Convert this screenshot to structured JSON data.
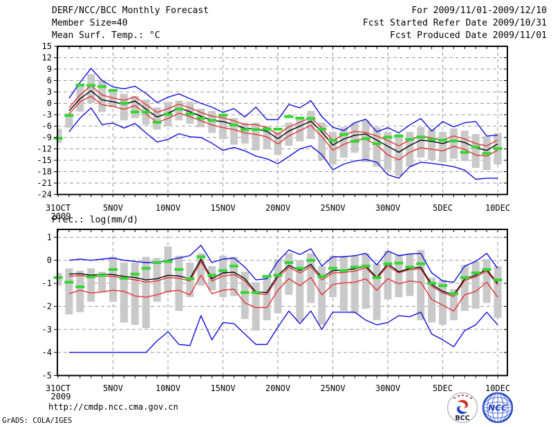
{
  "header": {
    "title": "DERF/NCC/BCC Monthly Forecast",
    "member_size": "Member Size=40",
    "for_range": "For 2009/11/01-2009/12/10",
    "refer_date": "Fcst Started Refer Date 2009/10/31",
    "produced_date": "Fcst Produced Date 2009/11/01"
  },
  "footer": {
    "url": "http://cmdp.ncc.cma.gov.cn",
    "credit": "GrADS: COLA/IGES",
    "logos": {
      "bcc_label": "BCC",
      "ncc_label": "NCC"
    }
  },
  "colors": {
    "ensemble_extreme": "#0d0de0",
    "ensemble_std": "#e63232",
    "ensemble_mean": "#000000",
    "observation": "#33d633",
    "spread_bar": "#c9c9c9",
    "grid": "#999999"
  },
  "chart_data": [
    {
      "type": "line",
      "title": "Mean Surf. Temp.: °C",
      "ylim": [
        -24,
        15
      ],
      "yticks": [
        15,
        12,
        9,
        6,
        3,
        0,
        -3,
        -6,
        -9,
        -12,
        -15,
        -18,
        -21,
        -24
      ],
      "x_tick_days": [
        0,
        5,
        10,
        15,
        20,
        25,
        30,
        35,
        40
      ],
      "x_tick_labels": [
        "31OCT",
        "5NOV",
        "10NOV",
        "15NOV",
        "20NOV",
        "25NOV",
        "30NOV",
        "5DEC",
        "10DEC"
      ],
      "x_sub_label": "2009",
      "grid": true,
      "series": [
        {
          "name": "ensemble-max",
          "color": "#0d0de0",
          "values": [
            null,
            1.3,
            5.5,
            9.2,
            6.0,
            4.3,
            3.8,
            4.5,
            2.6,
            0.2,
            1.6,
            2.5,
            1.2,
            0.0,
            -1.0,
            -2.4,
            -1.4,
            -3.6,
            -1.0,
            -4.3,
            -4.3,
            -0.3,
            -1.2,
            0.7,
            -3.5,
            -6.3,
            -7.2,
            -5.1,
            -4.2,
            -7.5,
            -6.4,
            -7.8,
            -5.7,
            -4.0,
            -7.3,
            -4.8,
            -6.2,
            -5.1,
            -4.8,
            -8.6,
            -8.4
          ]
        },
        {
          "name": "mean-plus-std",
          "color": "#e63232",
          "values": [
            null,
            -1.2,
            2.2,
            4.7,
            2.2,
            1.4,
            0.8,
            1.7,
            -0.3,
            -2.4,
            -1.4,
            -0.2,
            -1.2,
            -2.4,
            -3.4,
            -3.8,
            -4.6,
            -5.6,
            -5.6,
            -6.4,
            -8.2,
            -6.2,
            -5.0,
            -3.8,
            -6.5,
            -9.8,
            -8.2,
            -7.4,
            -7.7,
            -8.6,
            -9.8,
            -11.2,
            -9.7,
            -8.6,
            -9.1,
            -9.7,
            -8.6,
            -9.4,
            -10.6,
            -11.2,
            -9.7
          ]
        },
        {
          "name": "ensemble-mean",
          "color": "#000000",
          "values": [
            null,
            -2.0,
            1.2,
            3.3,
            0.9,
            0.4,
            -0.3,
            0.6,
            -1.5,
            -3.6,
            -2.6,
            -1.3,
            -2.2,
            -3.4,
            -4.5,
            -4.8,
            -5.6,
            -6.6,
            -6.7,
            -7.4,
            -9.3,
            -7.3,
            -6.0,
            -4.7,
            -7.5,
            -11.0,
            -9.4,
            -8.4,
            -8.1,
            -9.7,
            -11.3,
            -12.9,
            -11.1,
            -9.7,
            -10.0,
            -10.6,
            -9.7,
            -10.3,
            -11.7,
            -12.4,
            -10.7
          ]
        },
        {
          "name": "mean-minus-std",
          "color": "#e63232",
          "values": [
            null,
            -2.8,
            0.4,
            1.9,
            -0.4,
            -0.8,
            -1.6,
            -0.6,
            -2.8,
            -5.0,
            -4.0,
            -2.6,
            -3.5,
            -4.6,
            -5.7,
            -6.4,
            -6.9,
            -7.8,
            -8.2,
            -8.8,
            -10.7,
            -8.6,
            -7.2,
            -5.8,
            -8.8,
            -12.3,
            -10.8,
            -9.7,
            -9.4,
            -11.0,
            -13.6,
            -14.9,
            -12.9,
            -11.7,
            -12.1,
            -12.5,
            -11.3,
            -12.1,
            -13.6,
            -13.9,
            -12.3
          ]
        },
        {
          "name": "ensemble-min",
          "color": "#0d0de0",
          "values": [
            null,
            -7.5,
            -3.9,
            -1.2,
            -5.6,
            -5.2,
            -6.5,
            -5.3,
            -7.8,
            -10.2,
            -9.5,
            -8.0,
            -8.8,
            -9.0,
            -10.5,
            -12.4,
            -11.6,
            -12.5,
            -13.9,
            -14.6,
            -15.9,
            -14.0,
            -12.0,
            -11.2,
            -13.5,
            -17.5,
            -16.0,
            -15.2,
            -14.8,
            -15.5,
            -18.8,
            -19.7,
            -16.7,
            -15.5,
            -15.8,
            -16.2,
            -16.7,
            -17.6,
            -20.0,
            -19.7,
            -19.7
          ]
        }
      ],
      "obs": {
        "name": "observation",
        "color": "#33d633",
        "values": [
          -9.2,
          -3.2,
          4.8,
          4.7,
          4.4,
          3.4,
          0.0,
          -2.3,
          -2.3,
          -5.0,
          -2.9,
          -1.5,
          -2.8,
          -3.9,
          -4.5,
          -3.1,
          -5.7,
          -6.9,
          -6.9,
          -6.8,
          -6.8,
          -3.5,
          -3.9,
          -4.0,
          -6.8,
          -9.8,
          -8.2,
          -10.0,
          -9.3,
          -10.6,
          -8.9,
          -8.6,
          -9.5,
          -8.9,
          -9.5,
          -9.7,
          -9.9,
          -12.9,
          -11.5,
          -13.2,
          -11.9
        ]
      },
      "spread_bars": {
        "color": "#c9c9c9",
        "ranges": [
          [
            -6.7,
            -10.4
          ],
          [
            -2.6,
            -6.4
          ],
          [
            5.0,
            -2.2
          ],
          [
            7.7,
            0.1
          ],
          [
            6.2,
            -2.3
          ],
          [
            3.8,
            -1.0
          ],
          [
            2.5,
            -4.5
          ],
          [
            1.9,
            -3.9
          ],
          [
            1.0,
            -5.7
          ],
          [
            -1.1,
            -6.9
          ],
          [
            0.4,
            -6.0
          ],
          [
            0.7,
            -4.5
          ],
          [
            0.4,
            -5.4
          ],
          [
            -1.4,
            -6.3
          ],
          [
            -2.0,
            -7.8
          ],
          [
            -3.3,
            -9.4
          ],
          [
            -3.9,
            -10.9
          ],
          [
            -5.1,
            -10.6
          ],
          [
            -5.1,
            -12.4
          ],
          [
            -6.0,
            -12.1
          ],
          [
            -7.5,
            -13.6
          ],
          [
            -5.1,
            -11.2
          ],
          [
            -3.9,
            -10.0
          ],
          [
            -2.0,
            -9.4
          ],
          [
            -5.1,
            -14.9
          ],
          [
            -7.5,
            -16.1
          ],
          [
            -6.3,
            -14.3
          ],
          [
            -5.1,
            -13.0
          ],
          [
            -4.5,
            -15.5
          ],
          [
            -6.3,
            -16.7
          ],
          [
            -7.5,
            -17.6
          ],
          [
            -8.1,
            -19.1
          ],
          [
            -7.5,
            -16.7
          ],
          [
            -6.3,
            -14.3
          ],
          [
            -6.9,
            -14.9
          ],
          [
            -7.5,
            -15.5
          ],
          [
            -6.6,
            -14.6
          ],
          [
            -7.2,
            -15.2
          ],
          [
            -8.1,
            -17.0
          ],
          [
            -8.7,
            -17.6
          ],
          [
            -7.8,
            -16.1
          ]
        ]
      }
    },
    {
      "type": "line",
      "title": "Prec.: log(mm/d)",
      "ylim": [
        -5,
        1.34
      ],
      "yticks": [
        1,
        0,
        -1,
        -2,
        -3,
        -4,
        -5
      ],
      "x_tick_days": [
        0,
        5,
        10,
        15,
        20,
        25,
        30,
        35,
        40
      ],
      "x_tick_labels": [
        "31OCT",
        "5NOV",
        "10NOV",
        "15NOV",
        "20NOV",
        "25NOV",
        "30NOV",
        "5DEC",
        "10DEC"
      ],
      "x_sub_label": "2009",
      "grid": true,
      "series": [
        {
          "name": "ensemble-max",
          "color": "#0d0de0",
          "values": [
            null,
            0.0,
            0.05,
            0.0,
            0.05,
            0.1,
            0.0,
            -0.05,
            -0.1,
            -0.1,
            0.0,
            0.1,
            0.2,
            0.65,
            -0.1,
            0.05,
            0.1,
            -0.3,
            -0.85,
            -0.8,
            -0.05,
            0.45,
            0.25,
            0.5,
            -0.25,
            0.15,
            0.15,
            0.2,
            0.3,
            -0.2,
            0.4,
            0.2,
            0.27,
            0.3,
            -0.55,
            -0.9,
            -0.95,
            -0.25,
            -0.05,
            0.3,
            -0.35
          ]
        },
        {
          "name": "mean-plus-std",
          "color": "#e63232",
          "values": [
            null,
            -0.7,
            -0.66,
            -0.73,
            -0.68,
            -0.7,
            -0.78,
            -0.85,
            -0.95,
            -0.9,
            -0.75,
            -0.78,
            -0.9,
            -0.05,
            -0.9,
            -0.68,
            -0.62,
            -0.9,
            -1.45,
            -1.48,
            -0.75,
            -0.3,
            -0.55,
            -0.28,
            -0.85,
            -0.55,
            -0.53,
            -0.47,
            -0.32,
            -0.8,
            -0.25,
            -0.55,
            -0.4,
            -0.37,
            -1.12,
            -1.42,
            -1.57,
            -0.87,
            -0.72,
            -0.47,
            -1.07
          ]
        },
        {
          "name": "ensemble-mean",
          "color": "#000000",
          "values": [
            null,
            -0.6,
            -0.58,
            -0.65,
            -0.6,
            -0.62,
            -0.7,
            -0.75,
            -0.85,
            -0.8,
            -0.65,
            -0.68,
            -0.8,
            0.05,
            -0.8,
            -0.55,
            -0.52,
            -0.8,
            -1.38,
            -1.4,
            -0.65,
            -0.22,
            -0.45,
            -0.18,
            -0.75,
            -0.45,
            -0.43,
            -0.37,
            -0.25,
            -0.75,
            -0.15,
            -0.5,
            -0.35,
            -0.3,
            -1.05,
            -1.35,
            -1.5,
            -0.8,
            -0.65,
            -0.4,
            -1.0
          ]
        },
        {
          "name": "mean-minus-std",
          "color": "#e63232",
          "values": [
            null,
            -1.45,
            -1.3,
            -1.42,
            -1.38,
            -1.3,
            -1.35,
            -1.55,
            -1.6,
            -1.5,
            -1.35,
            -1.3,
            -1.5,
            -0.65,
            -1.45,
            -1.3,
            -1.25,
            -1.85,
            -2.05,
            -2.05,
            -1.3,
            -0.8,
            -1.1,
            -0.75,
            -1.5,
            -1.05,
            -0.98,
            -0.95,
            -0.8,
            -1.3,
            -0.8,
            -1.02,
            -0.9,
            -0.95,
            -1.7,
            -1.95,
            -2.2,
            -1.5,
            -1.35,
            -0.95,
            -1.6
          ]
        },
        {
          "name": "ensemble-min",
          "color": "#0d0de0",
          "values": [
            null,
            -4.0,
            -4.0,
            -4.0,
            -4.0,
            -4.0,
            -4.0,
            -4.0,
            -4.0,
            -3.5,
            -3.1,
            -3.65,
            -3.7,
            -2.4,
            -3.45,
            -2.7,
            -2.75,
            -3.2,
            -3.65,
            -3.65,
            -2.9,
            -2.2,
            -2.75,
            -2.2,
            -3.0,
            -2.25,
            -2.25,
            -2.25,
            -2.6,
            -2.8,
            -2.7,
            -2.4,
            -2.45,
            -2.25,
            -3.2,
            -3.45,
            -3.75,
            -3.05,
            -2.8,
            -2.25,
            -2.8
          ]
        }
      ],
      "obs": {
        "name": "observation",
        "color": "#33d633",
        "values": [
          -0.75,
          -0.95,
          -1.15,
          -0.72,
          -0.65,
          -0.4,
          -0.78,
          -0.6,
          -0.35,
          -0.1,
          -0.05,
          -0.4,
          -0.8,
          0.15,
          -0.65,
          -0.45,
          -0.25,
          -1.4,
          -1.4,
          -0.7,
          -0.65,
          -0.1,
          -0.35,
          0.0,
          -0.7,
          -0.35,
          -0.45,
          -0.3,
          -0.25,
          -0.75,
          -0.15,
          -0.12,
          -0.3,
          -0.15,
          -1.0,
          -1.1,
          -1.45,
          -0.75,
          -0.55,
          -0.4,
          -0.85
        ]
      },
      "spread_bars": {
        "color": "#c9c9c9",
        "ranges": [
          [
            -0.55,
            -1.1
          ],
          [
            -0.35,
            -2.35
          ],
          [
            -0.45,
            -2.25
          ],
          [
            -0.35,
            -1.8
          ],
          [
            -0.5,
            -1.4
          ],
          [
            0.15,
            -1.8
          ],
          [
            -0.1,
            -2.7
          ],
          [
            -0.1,
            -2.8
          ],
          [
            0.15,
            -2.95
          ],
          [
            0.1,
            -1.8
          ],
          [
            0.6,
            -1.4
          ],
          [
            0.2,
            -2.2
          ],
          [
            -0.1,
            -1.6
          ],
          [
            0.3,
            -1.1
          ],
          [
            -0.25,
            -1.3
          ],
          [
            0.2,
            -1.6
          ],
          [
            0.15,
            -1.55
          ],
          [
            -0.5,
            -2.55
          ],
          [
            -0.95,
            -3.05
          ],
          [
            -0.7,
            -2.6
          ],
          [
            0.05,
            -2.3
          ],
          [
            0.3,
            -1.5
          ],
          [
            0.0,
            -2.65
          ],
          [
            0.3,
            -1.85
          ],
          [
            -0.25,
            -2.8
          ],
          [
            0.2,
            -1.6
          ],
          [
            0.2,
            -2.2
          ],
          [
            0.2,
            -2.3
          ],
          [
            0.3,
            -2.1
          ],
          [
            -0.15,
            -2.6
          ],
          [
            0.4,
            -1.7
          ],
          [
            0.25,
            -1.6
          ],
          [
            0.3,
            -1.55
          ],
          [
            0.45,
            -2.6
          ],
          [
            -0.75,
            -2.7
          ],
          [
            -0.85,
            -2.8
          ],
          [
            -1.25,
            -2.6
          ],
          [
            -0.2,
            -2.2
          ],
          [
            -0.05,
            -2.1
          ],
          [
            0.05,
            -1.85
          ],
          [
            -0.25,
            -2.5
          ]
        ]
      }
    }
  ]
}
